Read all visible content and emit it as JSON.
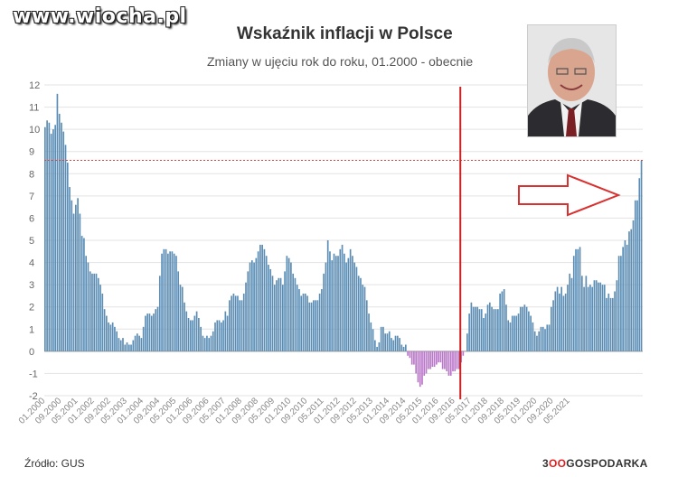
{
  "watermark": "www.wiocha.pl",
  "footer": {
    "source": "Źródło: GUS",
    "brand_prefix": "3",
    "brand_oo": "OO",
    "brand_suffix": "GOSPODARKA"
  },
  "colors": {
    "positive": "#5b8db4",
    "negative": "#b877c7",
    "marker": "#cc1f1f",
    "ref_line": "#e04040",
    "arrow": "#d93030"
  },
  "chart_data": {
    "type": "bar",
    "title": "Wskaźnik inflacji w Polsce",
    "subtitle": "Zmiany w ujęciu rok do roku, 01.2000 - obecnie",
    "ylim": [
      -2,
      12
    ],
    "yticks": [
      "-2",
      "-1",
      "0",
      "1",
      "2",
      "3",
      "4",
      "5",
      "6",
      "7",
      "8",
      "9",
      "10",
      "11",
      "12"
    ],
    "xticks": [
      "01.2000",
      "09.2000",
      "05.2001",
      "01.2002",
      "09.2002",
      "05.2003",
      "01.2004",
      "09.2004",
      "05.2005",
      "01.2006",
      "09.2006",
      "05.2007",
      "01.2008",
      "09.2008",
      "05.2009",
      "01.2010",
      "09.2010",
      "05.2011",
      "01.2012",
      "09.2012",
      "05.2013",
      "01.2014",
      "09.2014",
      "05.2015",
      "01.2016",
      "09.2016",
      "05.2017",
      "01.2018",
      "09.2018",
      "05.2019",
      "01.2020",
      "09.2020",
      "05.2021"
    ],
    "reference_line": 8.6,
    "marker_index": 203,
    "grid": true,
    "series": [
      {
        "values": [
          10.1,
          10.4,
          10.3,
          9.8,
          10.0,
          10.2,
          11.6,
          10.7,
          10.3,
          9.9,
          9.3,
          8.5,
          7.4,
          6.8,
          6.2,
          6.6,
          6.9,
          6.2,
          5.2,
          5.1,
          4.3,
          4.0,
          3.6,
          3.5,
          3.5,
          3.5,
          3.3,
          3.0,
          2.6,
          1.9,
          1.6,
          1.3,
          1.2,
          1.3,
          1.1,
          0.9,
          0.6,
          0.5,
          0.6,
          0.3,
          0.4,
          0.3,
          0.3,
          0.5,
          0.7,
          0.8,
          0.7,
          0.6,
          1.1,
          1.6,
          1.7,
          1.7,
          1.6,
          1.7,
          1.9,
          2.0,
          3.4,
          4.4,
          4.6,
          4.6,
          4.4,
          4.5,
          4.5,
          4.4,
          4.3,
          3.6,
          3.0,
          2.9,
          2.2,
          1.8,
          1.5,
          1.4,
          1.4,
          1.6,
          1.8,
          1.5,
          1.1,
          0.7,
          0.6,
          0.7,
          0.6,
          0.7,
          0.9,
          1.3,
          1.4,
          1.4,
          1.3,
          1.4,
          1.8,
          1.6,
          2.3,
          2.5,
          2.6,
          2.5,
          2.5,
          2.3,
          2.3,
          2.6,
          3.1,
          3.6,
          4.0,
          4.1,
          4.0,
          4.2,
          4.5,
          4.8,
          4.8,
          4.6,
          4.3,
          3.9,
          3.7,
          3.4,
          3.0,
          3.2,
          3.3,
          3.3,
          3.0,
          3.6,
          4.3,
          4.2,
          4.0,
          3.5,
          3.3,
          3.0,
          2.8,
          2.5,
          2.6,
          2.6,
          2.5,
          2.2,
          2.2,
          2.3,
          2.3,
          2.3,
          2.6,
          2.8,
          3.5,
          4.0,
          5.0,
          4.5,
          4.1,
          4.4,
          4.3,
          4.3,
          4.6,
          4.8,
          4.4,
          4.0,
          4.2,
          4.6,
          4.3,
          4.0,
          3.8,
          3.4,
          3.3,
          3.0,
          2.9,
          2.3,
          1.7,
          1.3,
          1.0,
          0.5,
          0.2,
          0.4,
          1.1,
          1.1,
          0.8,
          0.8,
          0.9,
          0.6,
          0.5,
          0.7,
          0.7,
          0.6,
          0.3,
          0.2,
          0.3,
          -0.2,
          -0.3,
          -0.6,
          -0.6,
          -1.0,
          -1.4,
          -1.6,
          -1.5,
          -1.1,
          -1.0,
          -0.8,
          -0.8,
          -0.7,
          -0.7,
          -0.6,
          -0.5,
          -0.5,
          -0.8,
          -0.8,
          -0.9,
          -1.1,
          -1.1,
          -0.9,
          -0.9,
          -0.8,
          -0.8,
          -0.5,
          -0.2,
          0.0,
          0.8,
          1.7,
          2.2,
          2.0,
          2.0,
          2.0,
          1.9,
          1.9,
          1.5,
          1.7,
          2.1,
          2.2,
          2.0,
          1.9,
          1.9,
          1.9,
          2.6,
          2.7,
          2.8,
          2.1,
          1.4,
          1.3,
          1.6,
          1.6,
          1.6,
          1.7,
          2.0,
          2.0,
          2.1,
          2.0,
          1.8,
          1.6,
          1.3,
          0.9,
          0.7,
          0.9,
          1.1,
          1.1,
          1.0,
          1.2,
          1.2,
          2.0,
          2.3,
          2.7,
          2.9,
          2.6,
          2.9,
          2.5,
          2.6,
          3.0,
          3.5,
          3.3,
          4.3,
          4.6,
          4.6,
          4.7,
          3.4,
          2.9,
          3.4,
          2.9,
          3.0,
          2.9,
          3.2,
          3.2,
          3.1,
          3.1,
          3.0,
          3.0,
          2.4,
          2.6,
          2.4,
          2.4,
          2.7,
          3.2,
          4.3,
          4.3,
          4.7,
          5.0,
          4.8,
          5.4,
          5.5,
          5.9,
          6.8,
          6.8,
          7.8,
          8.6
        ]
      }
    ]
  }
}
